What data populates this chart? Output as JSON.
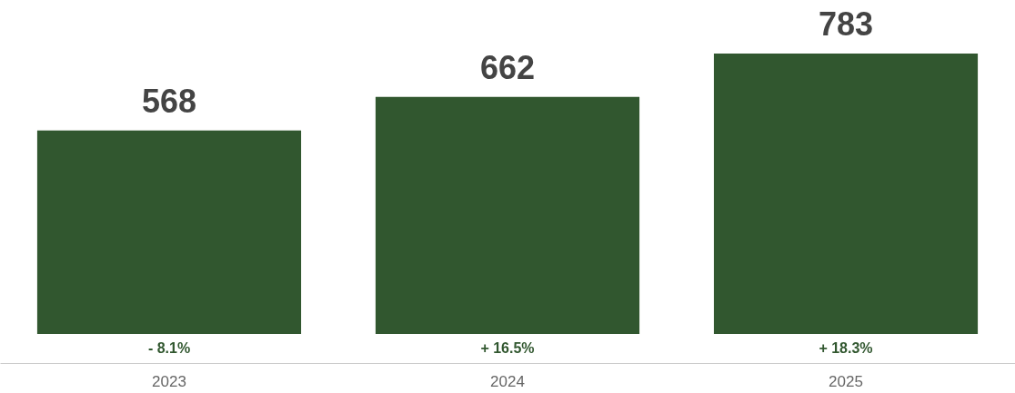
{
  "chart_data": {
    "type": "bar",
    "categories": [
      "2023",
      "2024",
      "2025"
    ],
    "values": [
      568,
      662,
      783
    ],
    "color": "#31572f",
    "data_labels": true,
    "grid": false,
    "tick_labels": "x",
    "annotations": [
      "- 8.1%",
      "+ 16.5%",
      "+ 18.3%"
    ]
  }
}
